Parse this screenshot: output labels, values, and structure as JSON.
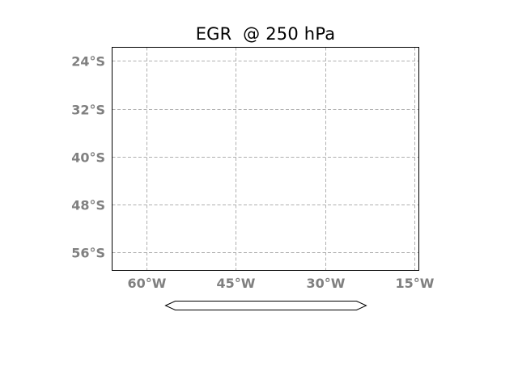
{
  "title": "EGR  @ 250 hPa",
  "map": {
    "lat_labels": [
      "24°S",
      "32°S",
      "40°S",
      "48°S",
      "56°S"
    ],
    "lat_values": [
      -24,
      -32,
      -40,
      -48,
      -56
    ],
    "lon_labels": [
      "60°W",
      "45°W",
      "30°W",
      "15°W"
    ],
    "lon_values": [
      -60,
      -45,
      -30,
      -15
    ],
    "extent": {
      "lon_min": -65.7,
      "lon_max": -14.3,
      "lat_min": -59.1,
      "lat_max": -21.7
    },
    "gridlines": true,
    "gridline_color": "#b0b0b0",
    "label_color": "#808080"
  },
  "colorbar": {
    "shape": "extended-both",
    "fill": "#ffffff",
    "edge": "#000000"
  }
}
